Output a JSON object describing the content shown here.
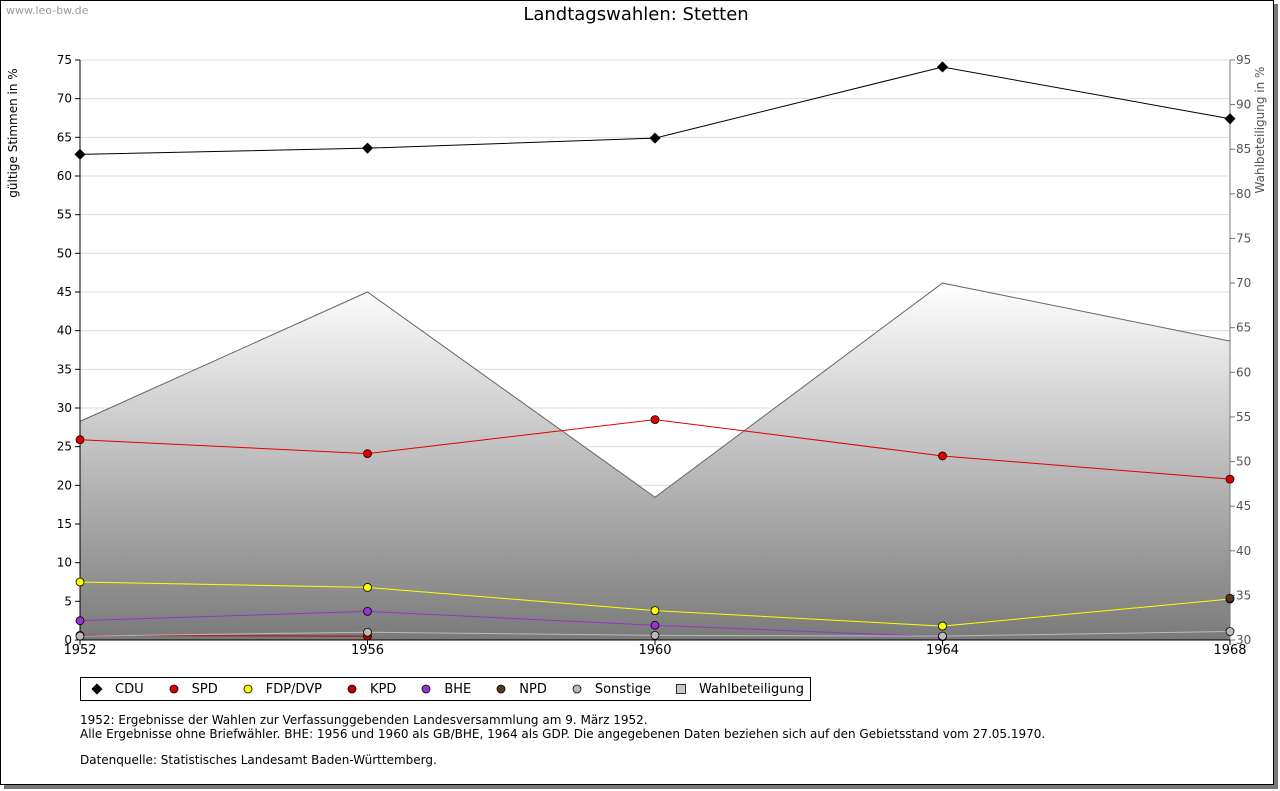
{
  "watermark": "www.leo-bw.de",
  "chart_data": {
    "type": "line",
    "title": "Landtagswahlen: Stetten",
    "ylabel": "gültige Stimmen in %",
    "y2label": "Wahlbeteiligung in %",
    "x": [
      "1952",
      "1956",
      "1960",
      "1964",
      "1968"
    ],
    "ylim": [
      0,
      75
    ],
    "y2lim": [
      30,
      95
    ],
    "yticks": [
      "0",
      "5",
      "10",
      "15",
      "20",
      "25",
      "30",
      "35",
      "40",
      "45",
      "50",
      "55",
      "60",
      "65",
      "70",
      "75"
    ],
    "y2ticks": [
      "30",
      "35",
      "40",
      "45",
      "50",
      "55",
      "60",
      "65",
      "70",
      "75",
      "80",
      "85",
      "90",
      "95"
    ],
    "grid": true,
    "legend_position": "bottom",
    "series": [
      {
        "name": "CDU",
        "color": "#000000",
        "values": [
          62.8,
          63.6,
          64.9,
          74.1,
          67.4
        ]
      },
      {
        "name": "SPD",
        "color": "#e00000",
        "values": [
          25.9,
          24.1,
          28.5,
          23.8,
          20.8
        ]
      },
      {
        "name": "FDP/DVP",
        "color": "#ffff00",
        "values": [
          7.5,
          6.8,
          3.8,
          1.8,
          5.3
        ]
      },
      {
        "name": "KPD",
        "color": "#c00000",
        "values": [
          0.6,
          0.5,
          null,
          null,
          null
        ]
      },
      {
        "name": "BHE",
        "color": "#9933cc",
        "values": [
          2.5,
          3.7,
          1.9,
          0.4,
          null
        ]
      },
      {
        "name": "NPD",
        "color": "#5a3a1a",
        "values": [
          null,
          null,
          null,
          null,
          5.4
        ]
      },
      {
        "name": "Sonstige",
        "color": "#bbbbbb",
        "values": [
          0.5,
          1.0,
          0.6,
          0.5,
          1.1
        ]
      }
    ],
    "turnout": {
      "name": "Wahlbeteiligung",
      "values": [
        54.5,
        69.0,
        46.0,
        70.0,
        63.5
      ]
    }
  },
  "notes": [
    "1952: Ergebnisse der Wahlen zur Verfassunggebenden Landesversammlung am 9. März 1952.",
    "Alle Ergebnisse ohne Briefwähler. BHE: 1956 und 1960 als GB/BHE, 1964 als GDP. Die angegebenen Daten beziehen sich auf den Gebietsstand vom 27.05.1970."
  ],
  "source": "Datenquelle: Statistisches Landesamt Baden-Württemberg."
}
